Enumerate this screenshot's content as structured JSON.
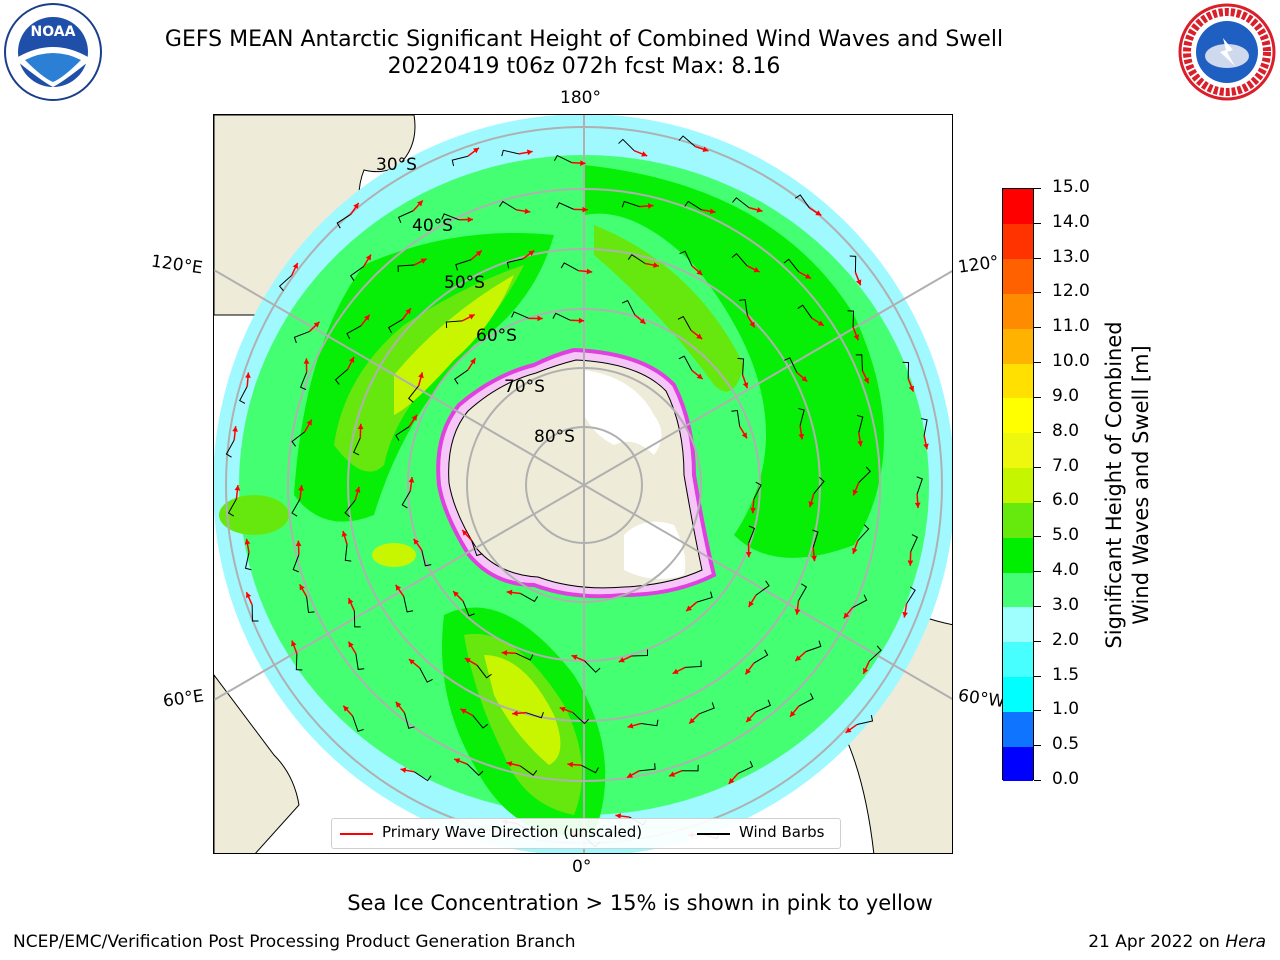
{
  "header": {
    "title_line1": "GEFS MEAN Antarctic Significant Height of Combined Wind Waves and Swell",
    "title_line2": "20220419 t06z 072h fcst   Max: 8.16"
  },
  "map": {
    "longitude_labels": [
      "180°",
      "120°E",
      "120°",
      "60°E",
      "60°W",
      "0°"
    ],
    "latitude_labels": [
      "30°S",
      "40°S",
      "50°S",
      "60°S",
      "70°S",
      "80°S"
    ],
    "land_color": "#efebd9",
    "ocean_field_colors": [
      "#9ff9ff",
      "#44ff71",
      "#07ef07",
      "#66e80f",
      "#c8f500",
      "#eef70d"
    ]
  },
  "colorbar": {
    "label": "Significant Height of Combined\nWind Waves and Swell [m]",
    "ticks": [
      "0.0",
      "0.5",
      "1.0",
      "1.5",
      "2.0",
      "3.0",
      "4.0",
      "5.0",
      "6.0",
      "7.0",
      "8.0",
      "9.0",
      "10.0",
      "11.0",
      "12.0",
      "13.0",
      "14.0",
      "15.0"
    ],
    "colors": [
      "#0000ff",
      "#0f74ff",
      "#00ffff",
      "#48ffff",
      "#9ffffe",
      "#44ff76",
      "#00ef00",
      "#66ea0d",
      "#c6f500",
      "#eef70e",
      "#ffff00",
      "#ffe000",
      "#ffb300",
      "#ff8b00",
      "#ff6000",
      "#ff3300",
      "#ff0000"
    ]
  },
  "legend": {
    "items": [
      {
        "label": "Primary Wave Direction (unscaled)",
        "color": "#ff0000"
      },
      {
        "label": "Wind Barbs",
        "color": "#000000"
      }
    ]
  },
  "footer": {
    "note": "Sea Ice Concentration > 15% is shown in pink to yellow",
    "credit_left": "NCEP/EMC/Verification Post Processing Product Generation Branch",
    "credit_right_date": "21 Apr 2022 on ",
    "credit_right_host": "Hera"
  }
}
